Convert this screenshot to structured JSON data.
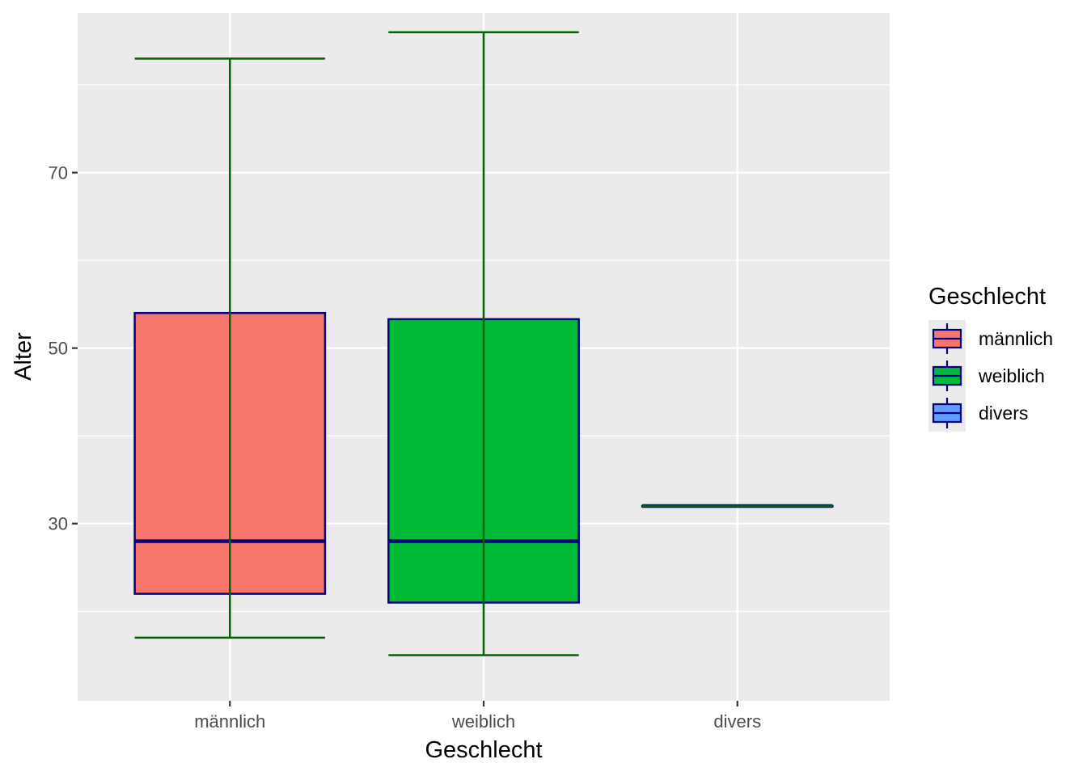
{
  "chart_data": {
    "type": "boxplot",
    "title": "",
    "xlabel": "Geschlecht",
    "ylabel": "Alter",
    "ylim": [
      9.8,
      88.2
    ],
    "yticks": [
      30,
      50,
      70
    ],
    "grid": true,
    "legend": {
      "title": "Geschlecht",
      "placement": "right",
      "entries": [
        "männlich",
        "weiblich",
        "divers"
      ]
    },
    "categories": [
      "männlich",
      "weiblich",
      "divers"
    ],
    "series": [
      {
        "name": "männlich",
        "whisker_low": 17,
        "q1": 22,
        "median": 28,
        "q3": 54,
        "whisker_high": 83,
        "fill": "#F8766D"
      },
      {
        "name": "weiblich",
        "whisker_low": 15,
        "q1": 21,
        "median": 28,
        "q3": 53.3,
        "whisker_high": 86,
        "fill": "#00BA38"
      },
      {
        "name": "divers",
        "whisker_low": 32,
        "q1": 32,
        "median": 32,
        "q3": 32,
        "whisker_high": 32,
        "fill": "#619CFF"
      }
    ],
    "colors": {
      "box_outline": "#000080",
      "whisker": "#006400",
      "panel": "#EBEBEB",
      "grid": "#FFFFFF"
    }
  }
}
